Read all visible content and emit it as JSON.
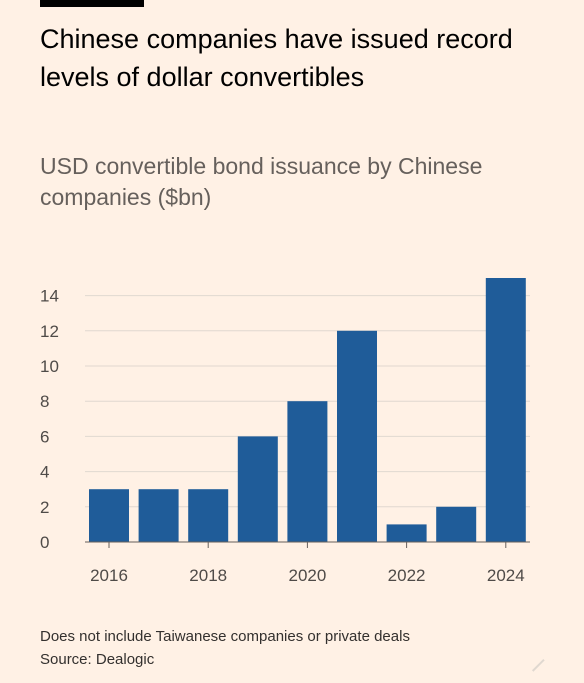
{
  "title": "Chinese companies have issued record levels of dollar convertibles",
  "subtitle": "USD convertible bond issuance by Chinese companies ($bn)",
  "note": "Does not include Taiwanese companies or private deals",
  "source": "Source: Dealogic",
  "colors": {
    "background": "#FFF1E5",
    "bar": "#1F5C99",
    "grid": "#E0D8D0",
    "axis": "#66605C"
  },
  "chart_data": {
    "type": "bar",
    "title": "Chinese companies have issued record levels of dollar convertibles",
    "subtitle": "USD convertible bond issuance by Chinese companies ($bn)",
    "categories": [
      "2016",
      "2017",
      "2018",
      "2019",
      "2020",
      "2021",
      "2022",
      "2023",
      "2024"
    ],
    "values": [
      3,
      3,
      3,
      6,
      8,
      12,
      1,
      2,
      15
    ],
    "xticks": [
      "2016",
      "2018",
      "2020",
      "2022",
      "2024"
    ],
    "yticks": [
      0,
      2,
      4,
      6,
      8,
      10,
      12,
      14
    ],
    "ylim": [
      0,
      15
    ],
    "xlabel": "",
    "ylabel": "",
    "grid": true
  }
}
